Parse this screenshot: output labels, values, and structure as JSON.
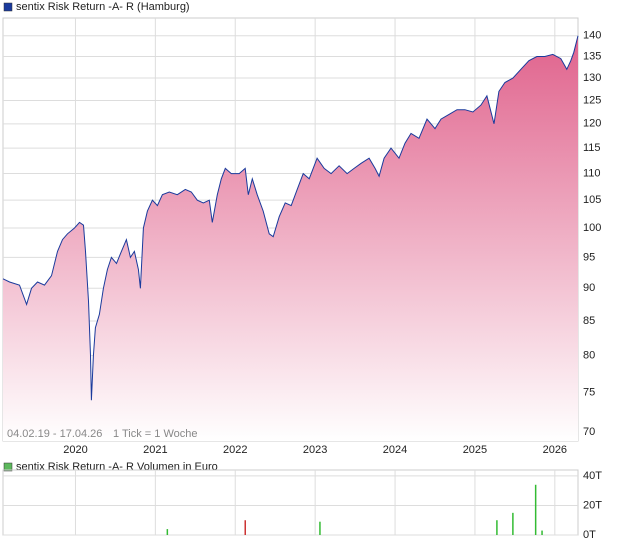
{
  "chart_data": [
    {
      "type": "area",
      "title": "sentix Risk Return -A- R (Hamburg)",
      "annotations": [
        "04.02.19 - 17.04.26",
        "1 Tick = 1 Woche"
      ],
      "color": "#1a3a9c",
      "fill_color": "#e0628c",
      "legend_color": "#1a3a9c",
      "log_scale": true,
      "grid": true,
      "x": [
        2019.093,
        2019.175,
        2019.3,
        2019.388,
        2019.45,
        2019.525,
        2019.613,
        2019.7,
        2019.775,
        2019.838,
        2019.9,
        2019.988,
        2020.05,
        2020.1,
        2020.125,
        2020.163,
        2020.188,
        2020.2,
        2020.225,
        2020.25,
        2020.3,
        2020.35,
        2020.4,
        2020.45,
        2020.513,
        2020.575,
        2020.638,
        2020.688,
        2020.738,
        2020.788,
        2020.813,
        2020.85,
        2020.9,
        2020.963,
        2021.025,
        2021.088,
        2021.175,
        2021.275,
        2021.375,
        2021.45,
        2021.525,
        2021.6,
        2021.675,
        2021.713,
        2021.775,
        2021.825,
        2021.875,
        2021.95,
        2022.05,
        2022.125,
        2022.163,
        2022.213,
        2022.275,
        2022.35,
        2022.425,
        2022.475,
        2022.55,
        2022.625,
        2022.7,
        2022.775,
        2022.85,
        2022.925,
        2023.025,
        2023.113,
        2023.2,
        2023.3,
        2023.4,
        2023.488,
        2023.575,
        2023.675,
        2023.75,
        2023.8,
        2023.863,
        2023.95,
        2024.05,
        2024.125,
        2024.2,
        2024.3,
        2024.4,
        2024.5,
        2024.575,
        2024.675,
        2024.775,
        2024.875,
        2024.975,
        2025.075,
        2025.15,
        2025.238,
        2025.3,
        2025.375,
        2025.475,
        2025.575,
        2025.675,
        2025.775,
        2025.875,
        2025.975,
        2026.075,
        2026.15,
        2026.2,
        2026.238,
        2026.29
      ],
      "values": [
        91.5,
        91,
        90.5,
        87.5,
        90,
        91,
        90.5,
        92,
        96,
        98,
        99,
        100,
        101,
        100.5,
        96,
        88,
        80,
        74,
        80,
        84,
        86,
        90,
        93,
        95,
        94,
        96,
        98,
        95,
        96,
        93,
        90,
        100,
        103,
        105,
        104,
        106,
        106.5,
        106,
        107,
        106.5,
        105,
        104.5,
        105,
        101,
        106,
        109,
        111,
        110,
        110,
        111,
        106,
        109,
        106,
        103,
        99,
        98.5,
        102,
        104.5,
        104,
        107,
        110,
        109,
        113,
        111,
        110,
        111.5,
        110,
        111,
        112,
        113,
        111,
        109.5,
        113,
        115,
        113,
        116,
        118,
        117,
        121,
        119,
        121,
        122,
        123,
        123,
        122.5,
        124,
        126,
        120,
        127,
        129,
        130,
        132,
        134,
        135,
        135,
        135.5,
        134.5,
        132,
        134,
        136,
        140
      ],
      "xlim": [
        2019.093,
        2026.29
      ],
      "xticks": [
        2020,
        2021,
        2022,
        2023,
        2024,
        2025,
        2026
      ],
      "ylim": [
        68.9,
        144.4
      ],
      "yticks": [
        70,
        75,
        80,
        85,
        90,
        95,
        100,
        105,
        110,
        115,
        120,
        125,
        130,
        135,
        140
      ]
    },
    {
      "type": "bar",
      "title": "sentix Risk Return -A- R Volumen in Euro",
      "legend_color": "#5cb85c",
      "grid": true,
      "x": [
        2021.15,
        2022.125,
        2023.06,
        2025.275,
        2025.475,
        2025.76,
        2025.84
      ],
      "values": [
        4,
        10,
        9,
        10,
        15,
        34,
        3
      ],
      "colors": [
        "#33bb33",
        "#cc3333",
        "#33bb33",
        "#33bb33",
        "#33bb33",
        "#33bb33",
        "#33bb33"
      ],
      "xlim": [
        2019.093,
        2026.29
      ],
      "xticks": [
        2020,
        2021,
        2022,
        2023,
        2024,
        2025,
        2026
      ],
      "ylim": [
        0,
        44
      ],
      "yticks": [
        {
          "value": 0,
          "label": "0T"
        },
        {
          "value": 20,
          "label": "20T"
        },
        {
          "value": 40,
          "label": "40T"
        }
      ]
    }
  ]
}
